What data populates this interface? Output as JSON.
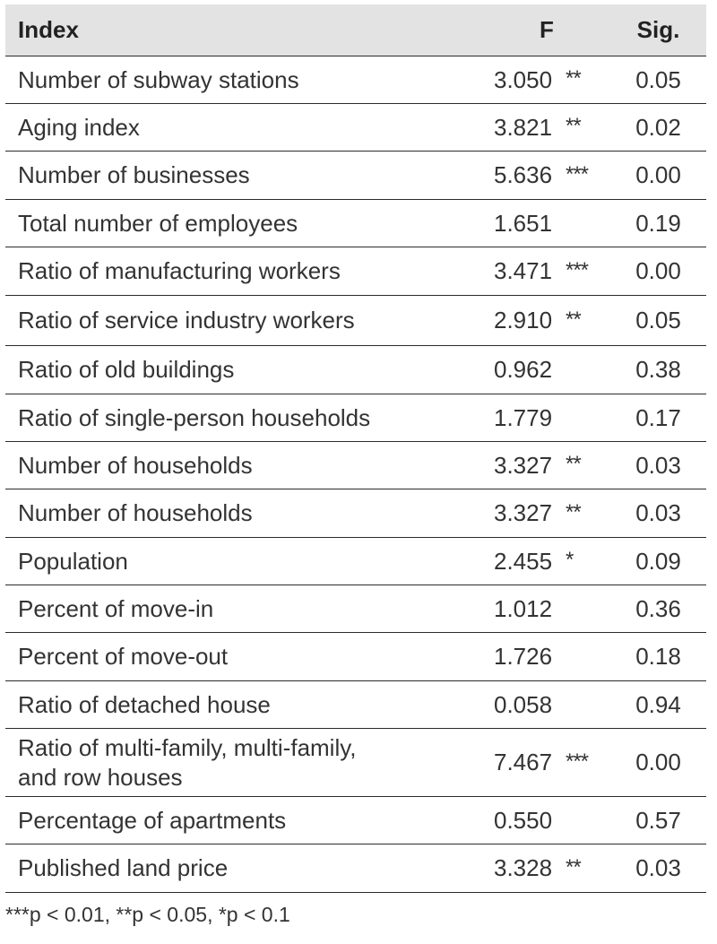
{
  "table": {
    "headers": {
      "index": "Index",
      "f": "F",
      "sig": "Sig."
    },
    "rows": [
      {
        "index": "Number of subway stations",
        "f": "3.050",
        "stars": "**",
        "sig": "0.05"
      },
      {
        "index": "Aging index",
        "f": "3.821",
        "stars": "**",
        "sig": "0.02"
      },
      {
        "index": "Number of businesses",
        "f": "5.636",
        "stars": "***",
        "sig": "0.00"
      },
      {
        "index": "Total number of employees",
        "f": "1.651",
        "stars": "",
        "sig": "0.19"
      },
      {
        "index": "Ratio of manufacturing workers",
        "f": "3.471",
        "stars": "***",
        "sig": "0.00"
      },
      {
        "index": "Ratio of service industry workers",
        "f": "2.910",
        "stars": "**",
        "sig": "0.05"
      },
      {
        "index": "Ratio of old buildings",
        "f": "0.962",
        "stars": "",
        "sig": "0.38"
      },
      {
        "index": "Ratio of single-person households",
        "f": "1.779",
        "stars": "",
        "sig": "0.17"
      },
      {
        "index": "Number of households",
        "f": "3.327",
        "stars": "**",
        "sig": "0.03"
      },
      {
        "index": "Number of households",
        "f": "3.327",
        "stars": "**",
        "sig": "0.03"
      },
      {
        "index": "Population",
        "f": "2.455",
        "stars": "*",
        "sig": "0.09"
      },
      {
        "index": "Percent of move-in",
        "f": "1.012",
        "stars": "",
        "sig": "0.36"
      },
      {
        "index": "Percent of move-out",
        "f": "1.726",
        "stars": "",
        "sig": "0.18"
      },
      {
        "index": "Ratio of detached house",
        "f": "0.058",
        "stars": "",
        "sig": "0.94"
      },
      {
        "index": "Ratio of multi-family, multi-family,",
        "index_line2": "and row houses",
        "f": "7.467",
        "stars": "***",
        "sig": "0.00"
      },
      {
        "index": "Percentage of apartments",
        "f": "0.550",
        "stars": "",
        "sig": "0.57"
      },
      {
        "index": "Published land price",
        "f": "3.328",
        "stars": "**",
        "sig": "0.03"
      }
    ]
  },
  "footnote": "***p < 0.01, **p < 0.05, *p < 0.1"
}
